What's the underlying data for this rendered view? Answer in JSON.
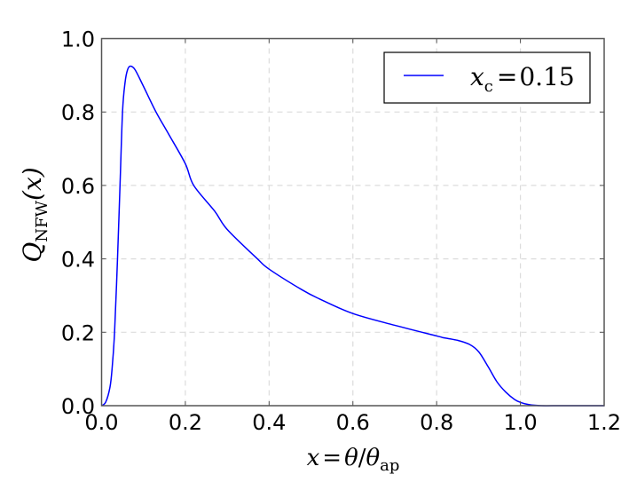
{
  "chart_data": {
    "type": "line",
    "title": "",
    "xlabel": "x = θ/θ_ap",
    "ylabel": "Q_NFW(x)",
    "xlim": [
      0.0,
      1.2
    ],
    "ylim": [
      0.0,
      1.0
    ],
    "grid": true,
    "legend_position": "upper right",
    "x_ticks": [
      "0.0",
      "0.2",
      "0.4",
      "0.6",
      "0.8",
      "1.0",
      "1.2"
    ],
    "y_ticks": [
      "0.0",
      "0.2",
      "0.4",
      "0.6",
      "0.8",
      "1.0"
    ],
    "series": [
      {
        "name": "x_c = 0.15",
        "color": "#0000ff",
        "x": [
          0.0,
          0.01,
          0.02,
          0.025,
          0.031,
          0.038,
          0.044,
          0.05,
          0.056,
          0.062,
          0.069,
          0.08,
          0.1,
          0.13,
          0.16,
          0.2,
          0.22,
          0.27,
          0.3,
          0.372,
          0.4,
          0.478,
          0.52,
          0.6,
          0.7,
          0.8,
          0.817,
          0.85,
          0.88,
          0.901,
          0.923,
          0.944,
          0.965,
          0.986,
          1.0,
          1.02,
          1.05,
          1.1,
          1.2
        ],
        "y": [
          0.0,
          0.01,
          0.05,
          0.1,
          0.2,
          0.4,
          0.6,
          0.8,
          0.88,
          0.915,
          0.925,
          0.915,
          0.87,
          0.8,
          0.74,
          0.659,
          0.6,
          0.53,
          0.48,
          0.4,
          0.372,
          0.316,
          0.291,
          0.251,
          0.219,
          0.19,
          0.185,
          0.178,
          0.166,
          0.146,
          0.106,
          0.065,
          0.037,
          0.017,
          0.009,
          0.003,
          0.0,
          0.0,
          0.0
        ]
      }
    ]
  },
  "legend": {
    "label_var": "x",
    "label_sub": "c",
    "label_eq": "=",
    "label_val": "0.15"
  },
  "axes": {
    "xlabel_parts": {
      "var": "x",
      "eq": "=",
      "theta": "θ",
      "slash": "/",
      "theta2": "θ",
      "sub": "ap"
    },
    "ylabel_parts": {
      "var": "Q",
      "sub": "NFW",
      "arg": "(x)"
    }
  }
}
